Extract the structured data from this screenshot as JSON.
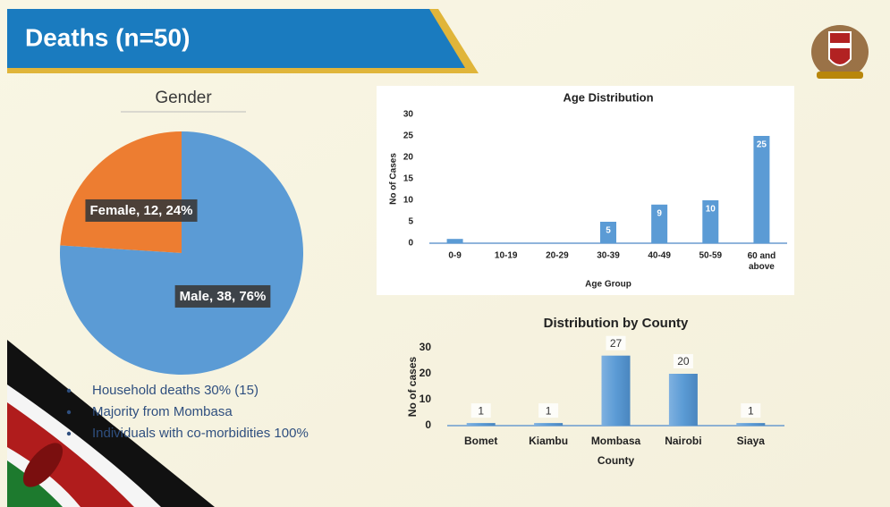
{
  "header": {
    "title": "Deaths (n=50)"
  },
  "bullets": [
    "Household deaths 30% (15)",
    "Majority from Mombasa",
    "Individuals with co-morbidities 100%"
  ],
  "chart_data": [
    {
      "type": "pie",
      "title": "Gender",
      "values": [
        12,
        38
      ],
      "value_labels": [
        "Female, 12, 24%",
        "Male, 38, 76%"
      ],
      "colors": [
        "#ed7d31",
        "#5b9bd5"
      ]
    },
    {
      "type": "bar",
      "title": "Age Distribution",
      "x_label": "Age Group",
      "y_label": "No of Cases",
      "categories": [
        "0-9",
        "10-19",
        "20-29",
        "30-39",
        "40-49",
        "50-59",
        "60 and above"
      ],
      "values": [
        1,
        0,
        0,
        5,
        9,
        10,
        25
      ],
      "color": "#5b9bd5",
      "ylim": [
        0,
        30
      ],
      "yticks": [
        0,
        5,
        10,
        15,
        20,
        25,
        30
      ]
    },
    {
      "type": "bar",
      "title": "Distribution by County",
      "x_label": "County",
      "y_label": "No of cases",
      "categories": [
        "Bomet",
        "Kiambu",
        "Mombasa",
        "Nairobi",
        "Siaya"
      ],
      "values": [
        1,
        1,
        27,
        20,
        1
      ],
      "color": "#5b9bd5",
      "ylim": [
        0,
        30
      ],
      "yticks": [
        0,
        10,
        20,
        30
      ]
    }
  ]
}
